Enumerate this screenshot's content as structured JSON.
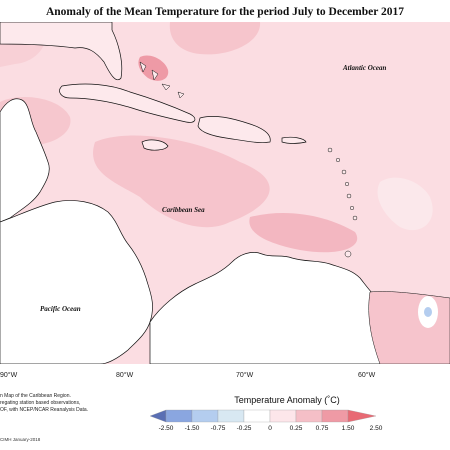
{
  "title": "Anomaly of the Mean Temperature for the period July to December 2017",
  "labels": {
    "atlantic": "Atlantic Ocean",
    "caribbean": "Caribbean Sea",
    "pacific": "Pacific Ocean"
  },
  "longitudes": [
    "90°W",
    "80°W",
    "70°W",
    "60°W"
  ],
  "notes": [
    "n Map of the Caribbean Region.",
    "regating station based observations,",
    "OF, with NCEP/NCAR Reanalysis Data."
  ],
  "legend": {
    "title": "Temperature Anomaly (˚C)",
    "ticks": [
      "-2.50",
      "-1.50",
      "-0.75",
      "-0.25",
      "0",
      "0.25",
      "0.75",
      "1.50",
      "2.50"
    ],
    "colors": [
      "#5a6fb4",
      "#8aa6e0",
      "#b4cdef",
      "#d8e8f2",
      "#ffffff",
      "#fde6ea",
      "#f5bfc7",
      "#ef9aa5",
      "#e86a74"
    ]
  },
  "footer": "CIMH January-2018"
}
